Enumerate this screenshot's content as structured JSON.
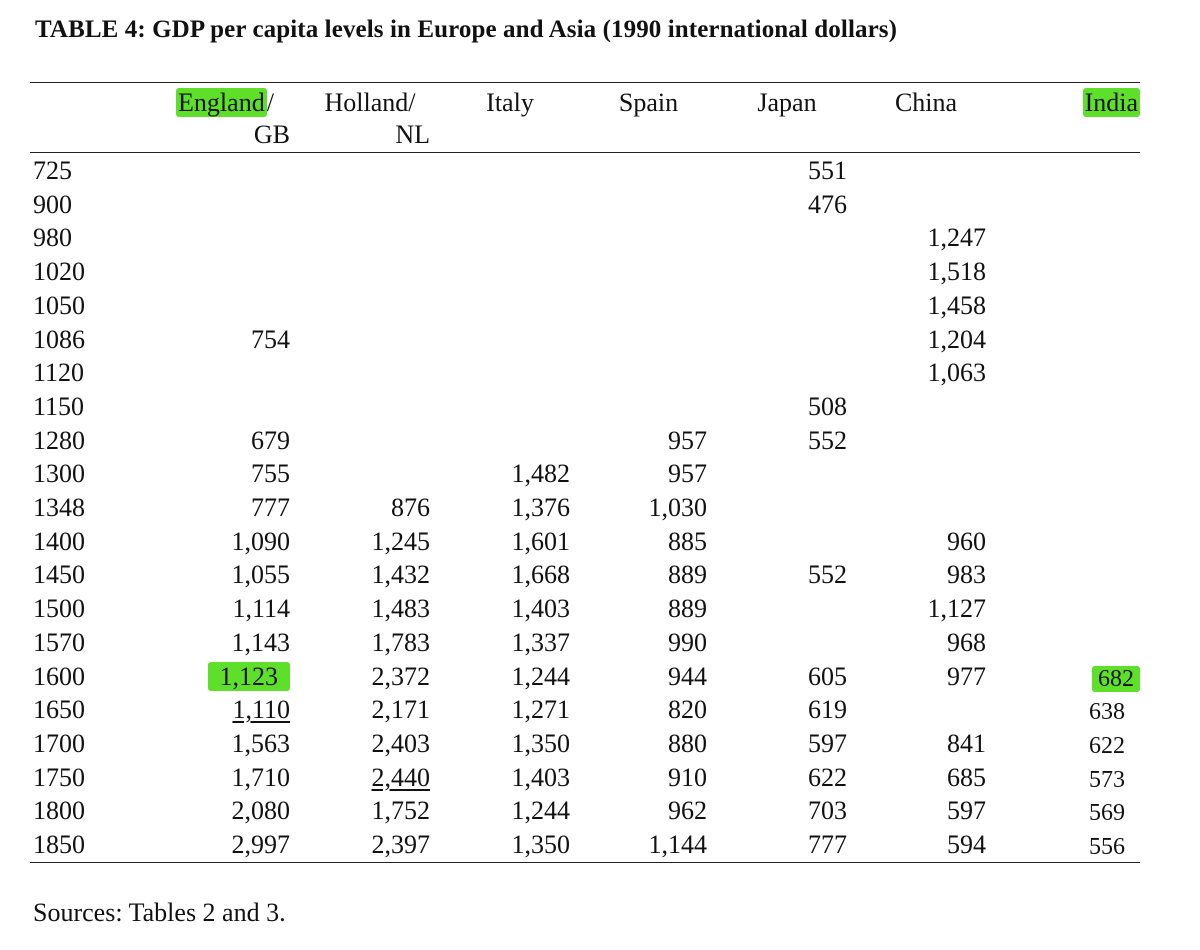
{
  "title": "TABLE 4: GDP per capita levels in Europe and Asia (1990 international dollars)",
  "headers": [
    {
      "line1": "England/",
      "line2": "GB"
    },
    {
      "line1": "Holland/",
      "line2": "NL"
    },
    {
      "line1": "Italy",
      "line2": ""
    },
    {
      "line1": "Spain",
      "line2": ""
    },
    {
      "line1": "Japan",
      "line2": ""
    },
    {
      "line1": "China",
      "line2": ""
    },
    {
      "line1": "India",
      "line2": ""
    }
  ],
  "highlights": {
    "header": "England",
    "header_rest": "/",
    "header_india": "India",
    "color": "#5ee02b"
  },
  "rows": [
    {
      "year": "725",
      "values": [
        "",
        "",
        "",
        "",
        "551",
        "",
        ""
      ]
    },
    {
      "year": "900",
      "values": [
        "",
        "",
        "",
        "",
        "476",
        "",
        ""
      ]
    },
    {
      "year": "980",
      "values": [
        "",
        "",
        "",
        "",
        "",
        "1,247",
        ""
      ]
    },
    {
      "year": "1020",
      "values": [
        "",
        "",
        "",
        "",
        "",
        "1,518",
        ""
      ]
    },
    {
      "year": "1050",
      "values": [
        "",
        "",
        "",
        "",
        "",
        "1,458",
        ""
      ]
    },
    {
      "year": "1086",
      "values": [
        "754",
        "",
        "",
        "",
        "",
        "1,204",
        ""
      ]
    },
    {
      "year": "1120",
      "values": [
        "",
        "",
        "",
        "",
        "",
        "1,063",
        ""
      ]
    },
    {
      "year": "1150",
      "values": [
        "",
        "",
        "",
        "",
        "508",
        "",
        ""
      ]
    },
    {
      "year": "1280",
      "values": [
        "679",
        "",
        "",
        "957",
        "552",
        "",
        ""
      ]
    },
    {
      "year": "1300",
      "values": [
        "755",
        "",
        "1,482",
        "957",
        "",
        "",
        ""
      ]
    },
    {
      "year": "1348",
      "values": [
        "777",
        "876",
        "1,376",
        "1,030",
        "",
        "",
        ""
      ]
    },
    {
      "year": "1400",
      "values": [
        "1,090",
        "1,245",
        "1,601",
        "885",
        "",
        "960",
        ""
      ]
    },
    {
      "year": "1450",
      "values": [
        "1,055",
        "1,432",
        "1,668",
        "889",
        "552",
        "983",
        ""
      ]
    },
    {
      "year": "1500",
      "values": [
        "1,114",
        "1,483",
        "1,403",
        "889",
        "",
        "1,127",
        ""
      ]
    },
    {
      "year": "1570",
      "values": [
        "1,143",
        "1,783",
        "1,337",
        "990",
        "",
        "968",
        ""
      ]
    },
    {
      "year": "1600",
      "values": [
        "1,123",
        "2,372",
        "1,244",
        "944",
        "605",
        "977",
        "682"
      ]
    },
    {
      "year": "1650",
      "values": [
        "1,110",
        "2,171",
        "1,271",
        "820",
        "619",
        "",
        "638"
      ]
    },
    {
      "year": "1700",
      "values": [
        "1,563",
        "2,403",
        "1,350",
        "880",
        "597",
        "841",
        "622"
      ]
    },
    {
      "year": "1750",
      "values": [
        "1,710",
        "2,440",
        "1,403",
        "910",
        "622",
        "685",
        "573"
      ]
    },
    {
      "year": "1800",
      "values": [
        "2,080",
        "1,752",
        "1,244",
        "962",
        "703",
        "597",
        "569"
      ]
    },
    {
      "year": "1850",
      "values": [
        "2,997",
        "2,397",
        "1,350",
        "1,144",
        "777",
        "594",
        "556"
      ]
    }
  ],
  "highlighted_cells": [
    {
      "row": "1600",
      "col": "England/GB"
    },
    {
      "row": "1600",
      "col": "India"
    }
  ],
  "underlined_cells": [
    {
      "row": "1650",
      "col": "England/GB"
    },
    {
      "row": "1750",
      "col": "Holland/NL"
    }
  ],
  "sources": "Sources: Tables 2 and 3."
}
